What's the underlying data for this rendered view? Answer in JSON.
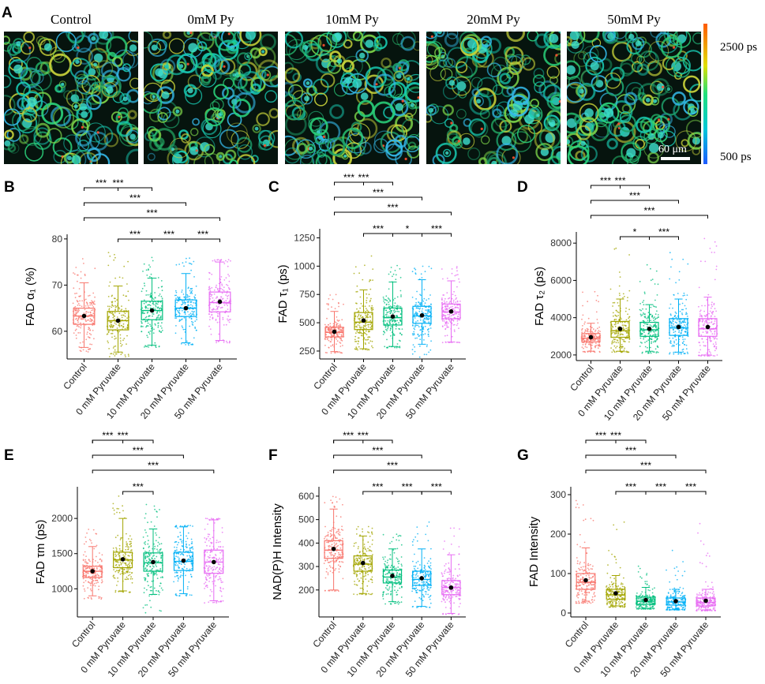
{
  "colors": {
    "Control": "#f8766d",
    "0 mM Pyruvate": "#a3a500",
    "10 mM Pyruvate": "#00bf7d",
    "20 mM Pyruvate": "#00b0f6",
    "50 mM Pyruvate": "#e76bf3"
  },
  "images": {
    "panel_letter": "A",
    "titles": [
      "Control",
      "0mM Py",
      "10mM Py",
      "20mM Py",
      "50mM Py"
    ],
    "colorbar_max": "2500 ps",
    "colorbar_min": "500 ps",
    "scalebar_label": "60 μm"
  },
  "chart_data": [
    {
      "panel": "B",
      "type": "box",
      "ylabel": "FAD α₁ (%)",
      "categories": [
        "Control",
        "0 mM Pyruvate",
        "10 mM Pyruvate",
        "20 mM Pyruvate",
        "50 mM Pyruvate"
      ],
      "ylim": [
        54,
        81
      ],
      "yticks": [
        60,
        70,
        80
      ],
      "boxes": [
        {
          "q1": 61.5,
          "median": 63.3,
          "q3": 65,
          "whisker_low": 56.5,
          "whisker_high": 70.5,
          "mean": 63.3,
          "min": 55.5,
          "max": 76
        },
        {
          "q1": 60.3,
          "median": 62.3,
          "q3": 64.3,
          "whisker_low": 55.5,
          "whisker_high": 69.8,
          "mean": 62.3,
          "min": 54.5,
          "max": 78
        },
        {
          "q1": 62.5,
          "median": 64.5,
          "q3": 66.5,
          "whisker_low": 57,
          "whisker_high": 71.5,
          "mean": 64.5,
          "min": 56.5,
          "max": 76
        },
        {
          "q1": 63.2,
          "median": 65,
          "q3": 66.8,
          "whisker_low": 57.5,
          "whisker_high": 72.5,
          "mean": 65,
          "min": 57,
          "max": 76
        },
        {
          "q1": 64.2,
          "median": 66.2,
          "q3": 68.5,
          "whisker_low": 58,
          "whisker_high": 75,
          "mean": 66.4,
          "min": 57.5,
          "max": 75.5
        }
      ],
      "significance": [
        {
          "from": 0,
          "to": 1,
          "label": "***"
        },
        {
          "from": 0,
          "to": 2,
          "label": "***"
        },
        {
          "from": 0,
          "to": 3,
          "label": "***"
        },
        {
          "from": 0,
          "to": 4,
          "label": "***"
        },
        {
          "from": 1,
          "to": 2,
          "label": "***"
        },
        {
          "from": 2,
          "to": 3,
          "label": "***"
        },
        {
          "from": 3,
          "to": 4,
          "label": "***"
        }
      ]
    },
    {
      "panel": "C",
      "type": "box",
      "ylabel": "FAD τ₁ (ps)",
      "categories": [
        "Control",
        "0 mM Pyruvate",
        "10 mM Pyruvate",
        "20 mM Pyruvate",
        "50 mM Pyruvate"
      ],
      "ylim": [
        180,
        1330
      ],
      "yticks": [
        250,
        500,
        750,
        1000,
        1250
      ],
      "boxes": [
        {
          "q1": 375,
          "median": 415,
          "q3": 460,
          "whisker_low": 245,
          "whisker_high": 600,
          "mean": 420,
          "min": 230,
          "max": 750
        },
        {
          "q1": 440,
          "median": 505,
          "q3": 590,
          "whisker_low": 270,
          "whisker_high": 790,
          "mean": 520,
          "min": 260,
          "max": 1200
        },
        {
          "q1": 480,
          "median": 545,
          "q3": 630,
          "whisker_low": 290,
          "whisker_high": 860,
          "mean": 555,
          "min": 280,
          "max": 1010
        },
        {
          "q1": 495,
          "median": 560,
          "q3": 645,
          "whisker_low": 310,
          "whisker_high": 880,
          "mean": 565,
          "min": 180,
          "max": 1000
        },
        {
          "q1": 535,
          "median": 595,
          "q3": 665,
          "whisker_low": 330,
          "whisker_high": 870,
          "mean": 600,
          "min": 320,
          "max": 1000
        }
      ],
      "significance": [
        {
          "from": 0,
          "to": 1,
          "label": "***"
        },
        {
          "from": 0,
          "to": 2,
          "label": "***"
        },
        {
          "from": 0,
          "to": 3,
          "label": "***"
        },
        {
          "from": 0,
          "to": 4,
          "label": "***"
        },
        {
          "from": 1,
          "to": 2,
          "label": "***"
        },
        {
          "from": 2,
          "to": 3,
          "label": "*"
        },
        {
          "from": 3,
          "to": 4,
          "label": "***"
        }
      ]
    },
    {
      "panel": "D",
      "type": "box",
      "ylabel": "FAD τ₂ (ps)",
      "categories": [
        "Control",
        "0 mM Pyruvate",
        "10 mM Pyruvate",
        "20 mM Pyruvate",
        "50 mM Pyruvate"
      ],
      "ylim": [
        1700,
        8600
      ],
      "yticks": [
        2000,
        4000,
        6000,
        8000
      ],
      "boxes": [
        {
          "q1": 2700,
          "median": 2900,
          "q3": 3150,
          "whisker_low": 2200,
          "whisker_high": 3700,
          "mean": 2950,
          "min": 2150,
          "max": 5400
        },
        {
          "q1": 2950,
          "median": 3300,
          "q3": 3800,
          "whisker_low": 2200,
          "whisker_high": 5000,
          "mean": 3400,
          "min": 2150,
          "max": 8300
        },
        {
          "q1": 3000,
          "median": 3350,
          "q3": 3750,
          "whisker_low": 2200,
          "whisker_high": 4700,
          "mean": 3400,
          "min": 2100,
          "max": 7200
        },
        {
          "q1": 3050,
          "median": 3450,
          "q3": 3950,
          "whisker_low": 2150,
          "whisker_high": 5000,
          "mean": 3500,
          "min": 2050,
          "max": 7500
        },
        {
          "q1": 3000,
          "median": 3400,
          "q3": 3950,
          "whisker_low": 2000,
          "whisker_high": 5100,
          "mean": 3500,
          "min": 1950,
          "max": 8300
        }
      ],
      "significance": [
        {
          "from": 0,
          "to": 1,
          "label": "***"
        },
        {
          "from": 0,
          "to": 2,
          "label": "***"
        },
        {
          "from": 0,
          "to": 3,
          "label": "***"
        },
        {
          "from": 0,
          "to": 4,
          "label": "***"
        },
        {
          "from": 1,
          "to": 2,
          "label": "*"
        },
        {
          "from": 2,
          "to": 3,
          "label": "***"
        }
      ]
    },
    {
      "panel": "E",
      "type": "box",
      "ylabel": "FAD τm (ps)",
      "categories": [
        "Control",
        "0 mM Pyruvate",
        "10 mM Pyruvate",
        "20 mM Pyruvate",
        "50 mM Pyruvate"
      ],
      "ylim": [
        600,
        2450
      ],
      "yticks": [
        1000,
        1500,
        2000
      ],
      "boxes": [
        {
          "q1": 1160,
          "median": 1250,
          "q3": 1320,
          "whisker_low": 900,
          "whisker_high": 1600,
          "mean": 1250,
          "min": 850,
          "max": 1900
        },
        {
          "q1": 1300,
          "median": 1410,
          "q3": 1520,
          "whisker_low": 970,
          "whisker_high": 2000,
          "mean": 1420,
          "min": 950,
          "max": 2400
        },
        {
          "q1": 1250,
          "median": 1370,
          "q3": 1510,
          "whisker_low": 920,
          "whisker_high": 1850,
          "mean": 1380,
          "min": 650,
          "max": 2200
        },
        {
          "q1": 1260,
          "median": 1390,
          "q3": 1520,
          "whisker_low": 930,
          "whisker_high": 1880,
          "mean": 1400,
          "min": 900,
          "max": 1900
        },
        {
          "q1": 1220,
          "median": 1380,
          "q3": 1550,
          "whisker_low": 830,
          "whisker_high": 1980,
          "mean": 1380,
          "min": 800,
          "max": 2000
        }
      ],
      "significance": [
        {
          "from": 0,
          "to": 1,
          "label": "***"
        },
        {
          "from": 0,
          "to": 2,
          "label": "***"
        },
        {
          "from": 0,
          "to": 3,
          "label": "***"
        },
        {
          "from": 0,
          "to": 4,
          "label": "***"
        },
        {
          "from": 1,
          "to": 2,
          "label": "***"
        }
      ]
    },
    {
      "panel": "F",
      "type": "box",
      "ylabel": "NAD(P)H Intensity",
      "categories": [
        "Control",
        "0 mM Pyruvate",
        "10 mM Pyruvate",
        "20 mM Pyruvate",
        "50 mM Pyruvate"
      ],
      "ylim": [
        85,
        640
      ],
      "yticks": [
        200,
        300,
        400,
        500,
        600
      ],
      "boxes": [
        {
          "q1": 335,
          "median": 370,
          "q3": 410,
          "whisker_low": 200,
          "whisker_high": 545,
          "mean": 375,
          "min": 195,
          "max": 600
        },
        {
          "q1": 280,
          "median": 310,
          "q3": 345,
          "whisker_low": 185,
          "whisker_high": 430,
          "mean": 315,
          "min": 180,
          "max": 480
        },
        {
          "q1": 230,
          "median": 255,
          "q3": 285,
          "whisker_low": 150,
          "whisker_high": 375,
          "mean": 260,
          "min": 140,
          "max": 440
        },
        {
          "q1": 220,
          "median": 245,
          "q3": 280,
          "whisker_low": 130,
          "whisker_high": 375,
          "mean": 250,
          "min": 125,
          "max": 500
        },
        {
          "q1": 180,
          "median": 210,
          "q3": 240,
          "whisker_low": 100,
          "whisker_high": 350,
          "mean": 210,
          "min": 95,
          "max": 480
        }
      ],
      "significance": [
        {
          "from": 0,
          "to": 1,
          "label": "***"
        },
        {
          "from": 0,
          "to": 2,
          "label": "***"
        },
        {
          "from": 0,
          "to": 3,
          "label": "***"
        },
        {
          "from": 0,
          "to": 4,
          "label": "***"
        },
        {
          "from": 1,
          "to": 2,
          "label": "***"
        },
        {
          "from": 2,
          "to": 3,
          "label": "***"
        },
        {
          "from": 3,
          "to": 4,
          "label": "***"
        }
      ]
    },
    {
      "panel": "G",
      "type": "box",
      "ylabel": "FAD Intensity",
      "categories": [
        "Control",
        "0 mM Pyruvate",
        "10 mM Pyruvate",
        "20 mM Pyruvate",
        "50 mM Pyruvate"
      ],
      "ylim": [
        -10,
        320
      ],
      "yticks": [
        0,
        100,
        200,
        300
      ],
      "boxes": [
        {
          "q1": 60,
          "median": 78,
          "q3": 100,
          "whisker_low": 30,
          "whisker_high": 165,
          "mean": 83,
          "min": 25,
          "max": 300
        },
        {
          "q1": 35,
          "median": 46,
          "q3": 60,
          "whisker_low": 18,
          "whisker_high": 95,
          "mean": 50,
          "min": 15,
          "max": 290
        },
        {
          "q1": 22,
          "median": 30,
          "q3": 40,
          "whisker_low": 12,
          "whisker_high": 65,
          "mean": 33,
          "min": 10,
          "max": 140
        },
        {
          "q1": 20,
          "median": 28,
          "q3": 38,
          "whisker_low": 10,
          "whisker_high": 60,
          "mean": 30,
          "min": 8,
          "max": 160
        },
        {
          "q1": 18,
          "median": 27,
          "q3": 38,
          "whisker_low": 8,
          "whisker_high": 60,
          "mean": 31,
          "min": 6,
          "max": 230
        }
      ],
      "significance": [
        {
          "from": 0,
          "to": 1,
          "label": "***"
        },
        {
          "from": 0,
          "to": 2,
          "label": "***"
        },
        {
          "from": 0,
          "to": 3,
          "label": "***"
        },
        {
          "from": 0,
          "to": 4,
          "label": "***"
        },
        {
          "from": 1,
          "to": 2,
          "label": "***"
        },
        {
          "from": 2,
          "to": 3,
          "label": "***"
        },
        {
          "from": 3,
          "to": 4,
          "label": "***"
        }
      ]
    }
  ]
}
